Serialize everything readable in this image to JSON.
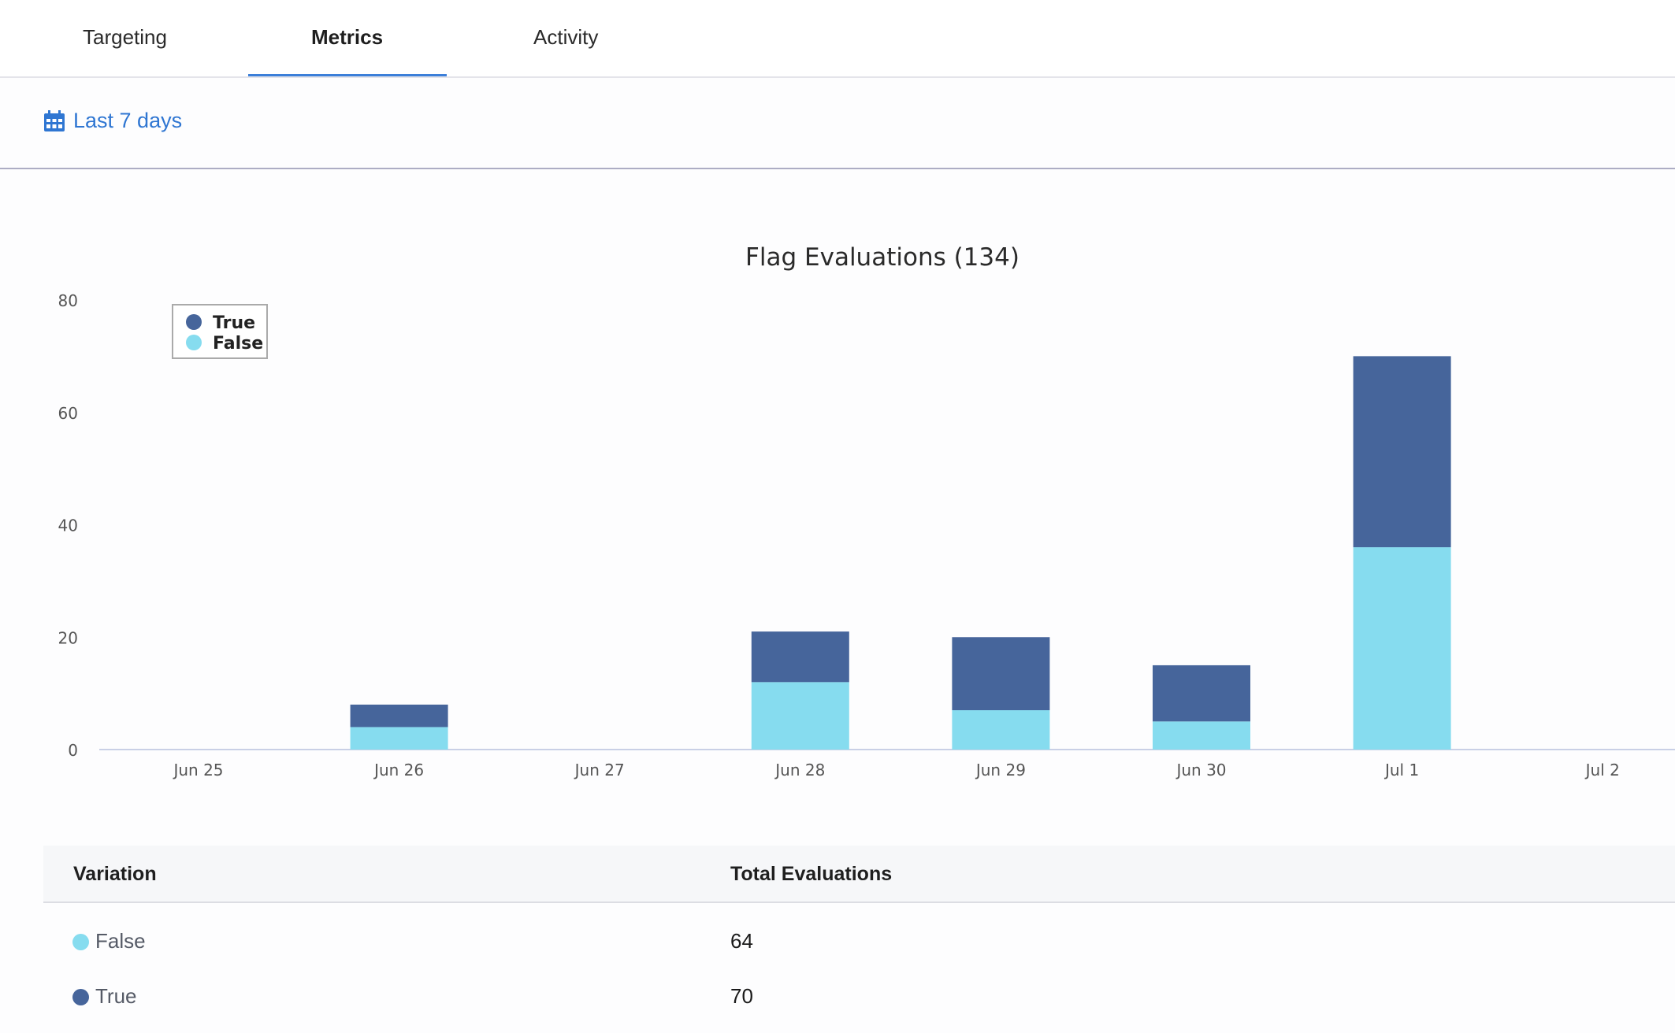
{
  "tabs": [
    {
      "label": "Targeting"
    },
    {
      "label": "Metrics",
      "active": true
    },
    {
      "label": "Activity"
    }
  ],
  "date_range": {
    "label": "Last 7 days",
    "icon": "calendar-icon"
  },
  "colors": {
    "true": "#46659b",
    "false": "#86dcef",
    "accent": "#2f76d2"
  },
  "chart_data": {
    "type": "bar",
    "stacked": true,
    "title": "Flag Evaluations (134)",
    "categories": [
      "Jun 25",
      "Jun 26",
      "Jun 27",
      "Jun 28",
      "Jun 29",
      "Jun 30",
      "Jul 1",
      "Jul 2"
    ],
    "series": [
      {
        "name": "False",
        "values": [
          0,
          4,
          0,
          12,
          7,
          5,
          36,
          0
        ]
      },
      {
        "name": "True",
        "values": [
          0,
          4,
          0,
          9,
          13,
          10,
          34,
          0
        ]
      }
    ],
    "legend": [
      "True",
      "False"
    ],
    "legend_placement": "top-left",
    "yticks": [
      0,
      20,
      40,
      60,
      80
    ],
    "ylim": [
      0,
      80
    ],
    "grid": false
  },
  "table": {
    "headers": [
      "Variation",
      "Total Evaluations"
    ],
    "rows": [
      {
        "variation": "False",
        "total": "64"
      },
      {
        "variation": "True",
        "total": "70"
      }
    ]
  }
}
